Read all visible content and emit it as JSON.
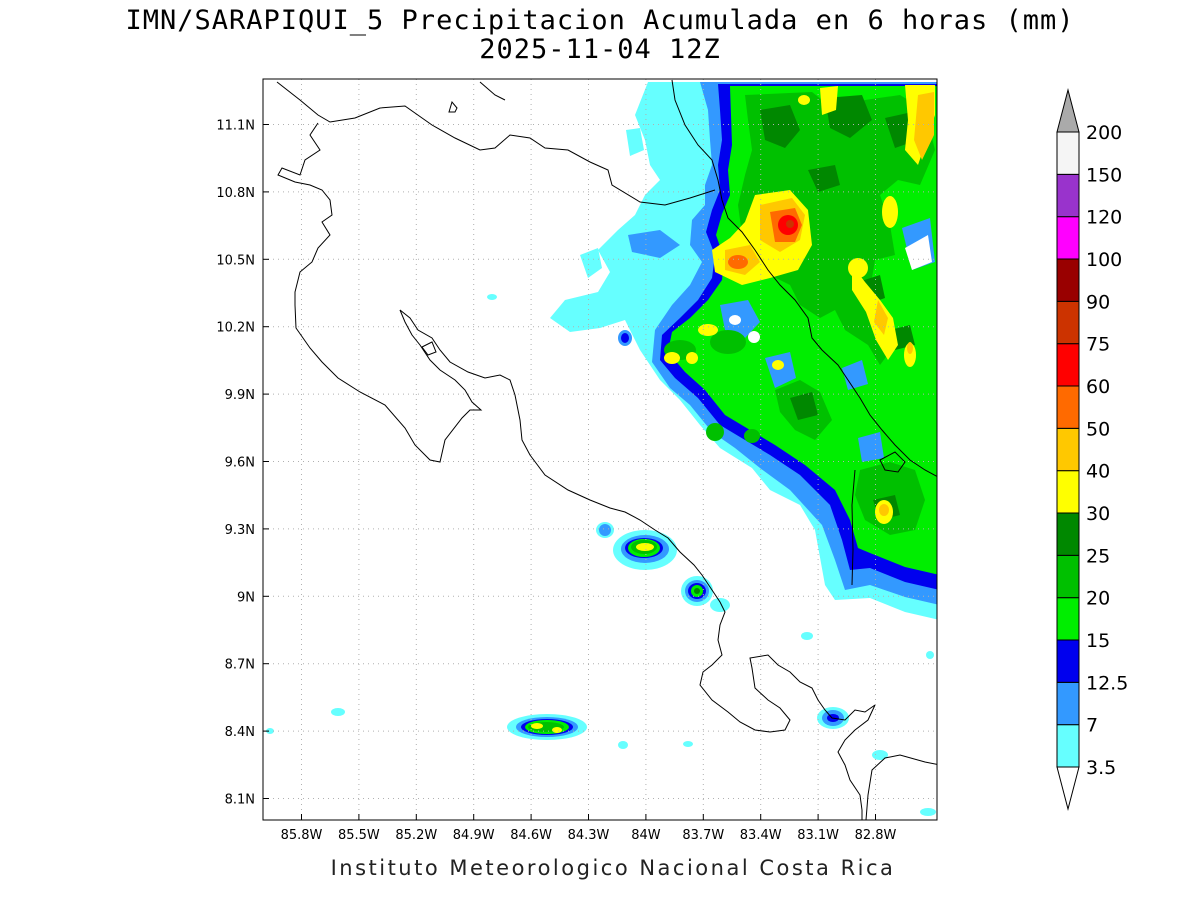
{
  "title": {
    "line1": "IMN/SARAPIQUI_5 Precipitacion Acumulada en 6 horas (mm)",
    "line2": "2025-11-04 12Z"
  },
  "footer": "Instituto Meteorologico Nacional Costa Rica",
  "map": {
    "lon_ticks": [
      "85.8W",
      "85.5W",
      "85.2W",
      "84.9W",
      "84.6W",
      "84.3W",
      "84W",
      "83.7W",
      "83.4W",
      "83.1W",
      "82.8W"
    ],
    "lat_ticks": [
      "11.1N",
      "10.8N",
      "10.5N",
      "10.2N",
      "9.9N",
      "9.6N",
      "9.3N",
      "9N",
      "8.7N",
      "8.4N",
      "8.1N"
    ],
    "grid": "dotted",
    "extent_lon": [
      -86.0,
      -82.6
    ],
    "extent_lat": [
      8.0,
      11.3
    ]
  },
  "colorbar": {
    "levels": [
      "3.5",
      "7",
      "12.5",
      "15",
      "20",
      "25",
      "30",
      "40",
      "50",
      "60",
      "75",
      "90",
      "100",
      "120",
      "150",
      "200"
    ],
    "colors": [
      "#66ffff",
      "#3399ff",
      "#0000ee",
      "#00ee00",
      "#00c000",
      "#008800",
      "#ffff00",
      "#ffc800",
      "#ff6a00",
      "#ff0000",
      "#cc3300",
      "#990000",
      "#ff00ff",
      "#9933cc",
      "#f5f5f5",
      "#aaaaaa"
    ]
  }
}
